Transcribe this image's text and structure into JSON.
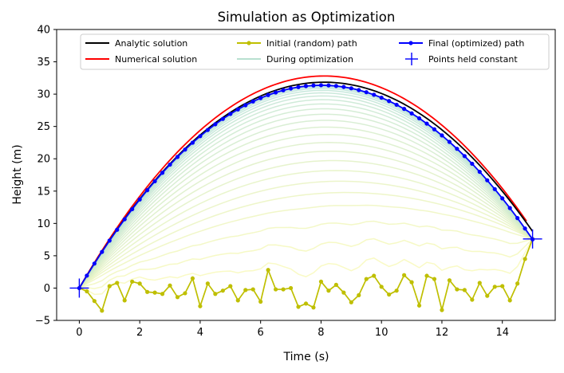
{
  "chart_data": {
    "type": "line",
    "title": "Simulation as Optimization",
    "xlabel": "Time (s)",
    "ylabel": "Height (m)",
    "xlim": [
      -0.75,
      15.75
    ],
    "ylim": [
      -5,
      40
    ],
    "xticks": [
      0,
      2,
      4,
      6,
      8,
      10,
      12,
      14
    ],
    "yticks": [
      -5,
      0,
      5,
      10,
      15,
      20,
      25,
      30,
      35,
      40
    ],
    "grid": false,
    "legend_position": "top",
    "legend": [
      {
        "label": "Analytic solution",
        "color": "#000000",
        "style": "line"
      },
      {
        "label": "Numerical solution",
        "color": "#ff0000",
        "style": "line"
      },
      {
        "label": "Initial (random) path",
        "color": "#bfbf00",
        "style": "line-dot"
      },
      {
        "label": "During optimization",
        "color": "#b8e0d0",
        "style": "line"
      },
      {
        "label": "Final (optimized) path",
        "color": "#0000ff",
        "style": "line-dot"
      },
      {
        "label": "Points held constant",
        "color": "#0000ff",
        "style": "plus"
      }
    ],
    "series": [
      {
        "name": "Analytic solution",
        "color": "#000000",
        "model": "projectile",
        "x_range": [
          0,
          15
        ],
        "v0": 7.86,
        "g": 0.97,
        "y0": 0
      },
      {
        "name": "Numerical solution",
        "color": "#ff0000",
        "model": "projectile",
        "x_range": [
          0,
          14.8
        ],
        "v0": 8.1,
        "g": 1.0,
        "y0": 0
      },
      {
        "name": "Initial (random) path",
        "color": "#bfbf00",
        "x": [
          0,
          0.25,
          0.5,
          0.75,
          1.0,
          1.25,
          1.5,
          1.75,
          2.0,
          2.25,
          2.5,
          2.75,
          3.0,
          3.25,
          3.5,
          3.75,
          4.0,
          4.25,
          4.5,
          4.75,
          5.0,
          5.25,
          5.5,
          5.75,
          6.0,
          6.25,
          6.5,
          6.75,
          7.0,
          7.25,
          7.5,
          7.75,
          8.0,
          8.25,
          8.5,
          8.75,
          9.0,
          9.25,
          9.5,
          9.75,
          10.0,
          10.25,
          10.5,
          10.75,
          11.0,
          11.25,
          11.5,
          11.75,
          12.0,
          12.25,
          12.5,
          12.75,
          13.0,
          13.25,
          13.5,
          13.75,
          14.0,
          14.25,
          14.5,
          14.75,
          15.0
        ],
        "y": [
          0,
          -0.5,
          -2.0,
          -3.5,
          0.3,
          0.8,
          -1.9,
          1.0,
          0.7,
          -0.6,
          -0.7,
          -0.9,
          0.4,
          -1.4,
          -0.8,
          1.5,
          -2.8,
          0.7,
          -0.9,
          -0.4,
          0.3,
          -1.9,
          -0.3,
          -0.2,
          -2.1,
          2.8,
          -0.2,
          -0.2,
          0.0,
          -2.9,
          -2.4,
          -3.0,
          1.0,
          -0.4,
          0.5,
          -0.7,
          -2.2,
          -1.1,
          1.4,
          1.9,
          0.2,
          -1.0,
          -0.4,
          2.0,
          0.9,
          -2.7,
          1.9,
          1.4,
          -3.4,
          1.2,
          -0.2,
          -0.3,
          -1.8,
          0.8,
          -1.2,
          0.2,
          0.3,
          -1.9,
          0.7,
          4.5,
          7.6
        ]
      },
      {
        "name": "Final (optimized) path",
        "color": "#0000ff",
        "model": "projectile",
        "x_range": [
          0,
          15
        ],
        "points": 61,
        "v0": 7.83,
        "g": 0.977,
        "y0": 0
      },
      {
        "name": "Points held constant",
        "color": "#0000ff",
        "x": [
          0,
          15
        ],
        "y": [
          0,
          7.6
        ]
      }
    ],
    "optimization_steps": {
      "name": "During optimization",
      "count": 24,
      "color_start": "#fafab4",
      "color_end": "#aadcdc"
    }
  }
}
